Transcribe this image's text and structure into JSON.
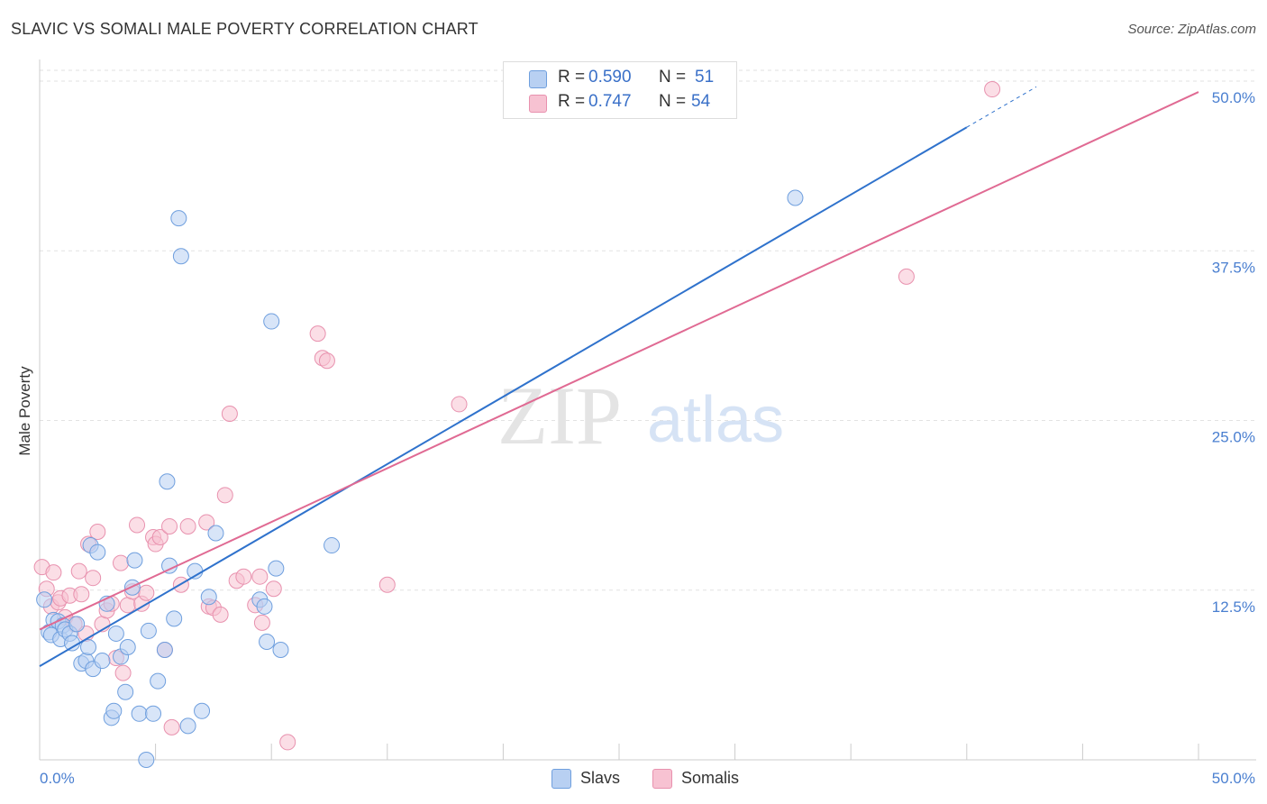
{
  "title": "SLAVIC VS SOMALI MALE POVERTY CORRELATION CHART",
  "source": "Source: ZipAtlas.com",
  "watermark": {
    "zip": "ZIP",
    "atlas": "atlas"
  },
  "legend": {
    "rows": [
      {
        "r_label": "R =",
        "r_value": "0.590",
        "n_label": "N =",
        "n_value": "51"
      },
      {
        "r_label": "R =",
        "r_value": "0.747",
        "n_label": "N =",
        "n_value": "54"
      }
    ]
  },
  "colors": {
    "slavs_fill": "#b8d0f2",
    "slavs_stroke": "#6f9fde",
    "slavs_line": "#2f72cc",
    "somalis_fill": "#f7c2d2",
    "somalis_stroke": "#e891ae",
    "somalis_line": "#e06a93",
    "grid": "#e2e2e2",
    "axis": "#cccccc",
    "tick_text": "#4a7fd0"
  },
  "chart_data": {
    "type": "scatter",
    "title": "SLAVIC VS SOMALI MALE POVERTY CORRELATION CHART",
    "xlabel": "",
    "ylabel": "Male Poverty",
    "xlim": [
      0,
      50
    ],
    "ylim": [
      0,
      50
    ],
    "x_tick_labels": [
      "0.0%",
      "50.0%"
    ],
    "y_ticks": [
      12.5,
      25.0,
      37.5,
      50.0
    ],
    "y_tick_labels": [
      "12.5%",
      "25.0%",
      "37.5%",
      "50.0%"
    ],
    "grid": true,
    "legend_position": "top-center",
    "series": [
      {
        "name": "Slavs",
        "r": 0.59,
        "n": 51,
        "trend": {
          "x": [
            0,
            40
          ],
          "y": [
            6.9,
            46.6
          ]
        },
        "points": [
          [
            0.2,
            11.8
          ],
          [
            0.4,
            9.4
          ],
          [
            0.5,
            9.2
          ],
          [
            0.6,
            10.3
          ],
          [
            0.8,
            10.2
          ],
          [
            0.9,
            8.9
          ],
          [
            1.0,
            9.9
          ],
          [
            1.1,
            9.6
          ],
          [
            1.3,
            9.3
          ],
          [
            1.4,
            8.6
          ],
          [
            1.6,
            10.0
          ],
          [
            1.8,
            7.1
          ],
          [
            2.0,
            7.3
          ],
          [
            2.1,
            8.3
          ],
          [
            2.2,
            15.8
          ],
          [
            2.3,
            6.7
          ],
          [
            2.5,
            15.3
          ],
          [
            2.7,
            7.3
          ],
          [
            2.9,
            11.5
          ],
          [
            3.1,
            3.1
          ],
          [
            3.2,
            3.6
          ],
          [
            3.3,
            9.3
          ],
          [
            3.5,
            7.6
          ],
          [
            3.7,
            5.0
          ],
          [
            3.8,
            8.3
          ],
          [
            4.0,
            12.7
          ],
          [
            4.1,
            14.7
          ],
          [
            4.3,
            3.4
          ],
          [
            4.6,
            0.0
          ],
          [
            4.7,
            9.5
          ],
          [
            4.9,
            3.4
          ],
          [
            5.1,
            5.8
          ],
          [
            5.4,
            8.1
          ],
          [
            5.5,
            20.5
          ],
          [
            5.6,
            14.3
          ],
          [
            5.8,
            10.4
          ],
          [
            6.0,
            39.9
          ],
          [
            6.1,
            37.1
          ],
          [
            6.4,
            2.5
          ],
          [
            6.7,
            13.9
          ],
          [
            7.0,
            3.6
          ],
          [
            7.3,
            12.0
          ],
          [
            7.6,
            16.7
          ],
          [
            9.5,
            11.8
          ],
          [
            9.7,
            11.3
          ],
          [
            9.8,
            8.7
          ],
          [
            10.0,
            32.3
          ],
          [
            10.2,
            14.1
          ],
          [
            10.4,
            8.1
          ],
          [
            12.6,
            15.8
          ],
          [
            32.6,
            41.4
          ]
        ]
      },
      {
        "name": "Somalis",
        "r": 0.747,
        "n": 54,
        "trend": {
          "x": [
            0,
            50
          ],
          "y": [
            9.6,
            49.2
          ]
        },
        "points": [
          [
            0.1,
            14.2
          ],
          [
            0.3,
            12.6
          ],
          [
            0.5,
            11.3
          ],
          [
            0.6,
            13.8
          ],
          [
            0.8,
            11.6
          ],
          [
            0.9,
            11.9
          ],
          [
            1.1,
            10.5
          ],
          [
            1.3,
            12.1
          ],
          [
            1.5,
            10.0
          ],
          [
            1.7,
            13.9
          ],
          [
            1.8,
            12.2
          ],
          [
            2.0,
            9.3
          ],
          [
            2.1,
            15.9
          ],
          [
            2.3,
            13.4
          ],
          [
            2.5,
            16.8
          ],
          [
            2.7,
            10.0
          ],
          [
            2.9,
            11.0
          ],
          [
            3.1,
            11.5
          ],
          [
            3.3,
            7.5
          ],
          [
            3.5,
            14.5
          ],
          [
            3.6,
            6.4
          ],
          [
            3.8,
            11.4
          ],
          [
            4.0,
            12.4
          ],
          [
            4.2,
            17.3
          ],
          [
            4.4,
            11.5
          ],
          [
            4.6,
            12.3
          ],
          [
            4.9,
            16.4
          ],
          [
            5.0,
            15.9
          ],
          [
            5.2,
            16.4
          ],
          [
            5.4,
            8.1
          ],
          [
            5.6,
            17.2
          ],
          [
            5.7,
            2.4
          ],
          [
            6.1,
            12.9
          ],
          [
            6.4,
            17.2
          ],
          [
            7.2,
            17.5
          ],
          [
            7.3,
            11.3
          ],
          [
            7.5,
            11.2
          ],
          [
            7.8,
            10.7
          ],
          [
            8.0,
            19.5
          ],
          [
            8.2,
            25.5
          ],
          [
            8.5,
            13.2
          ],
          [
            8.8,
            13.5
          ],
          [
            9.3,
            11.4
          ],
          [
            9.5,
            13.5
          ],
          [
            9.6,
            10.1
          ],
          [
            10.1,
            12.6
          ],
          [
            10.7,
            1.3
          ],
          [
            12.0,
            31.4
          ],
          [
            12.2,
            29.6
          ],
          [
            12.4,
            29.4
          ],
          [
            15.0,
            12.9
          ],
          [
            18.1,
            26.2
          ],
          [
            37.4,
            35.6
          ],
          [
            41.1,
            49.4
          ]
        ]
      }
    ]
  },
  "bottom_legend": {
    "slavs": "Slavs",
    "somalis": "Somalis"
  }
}
